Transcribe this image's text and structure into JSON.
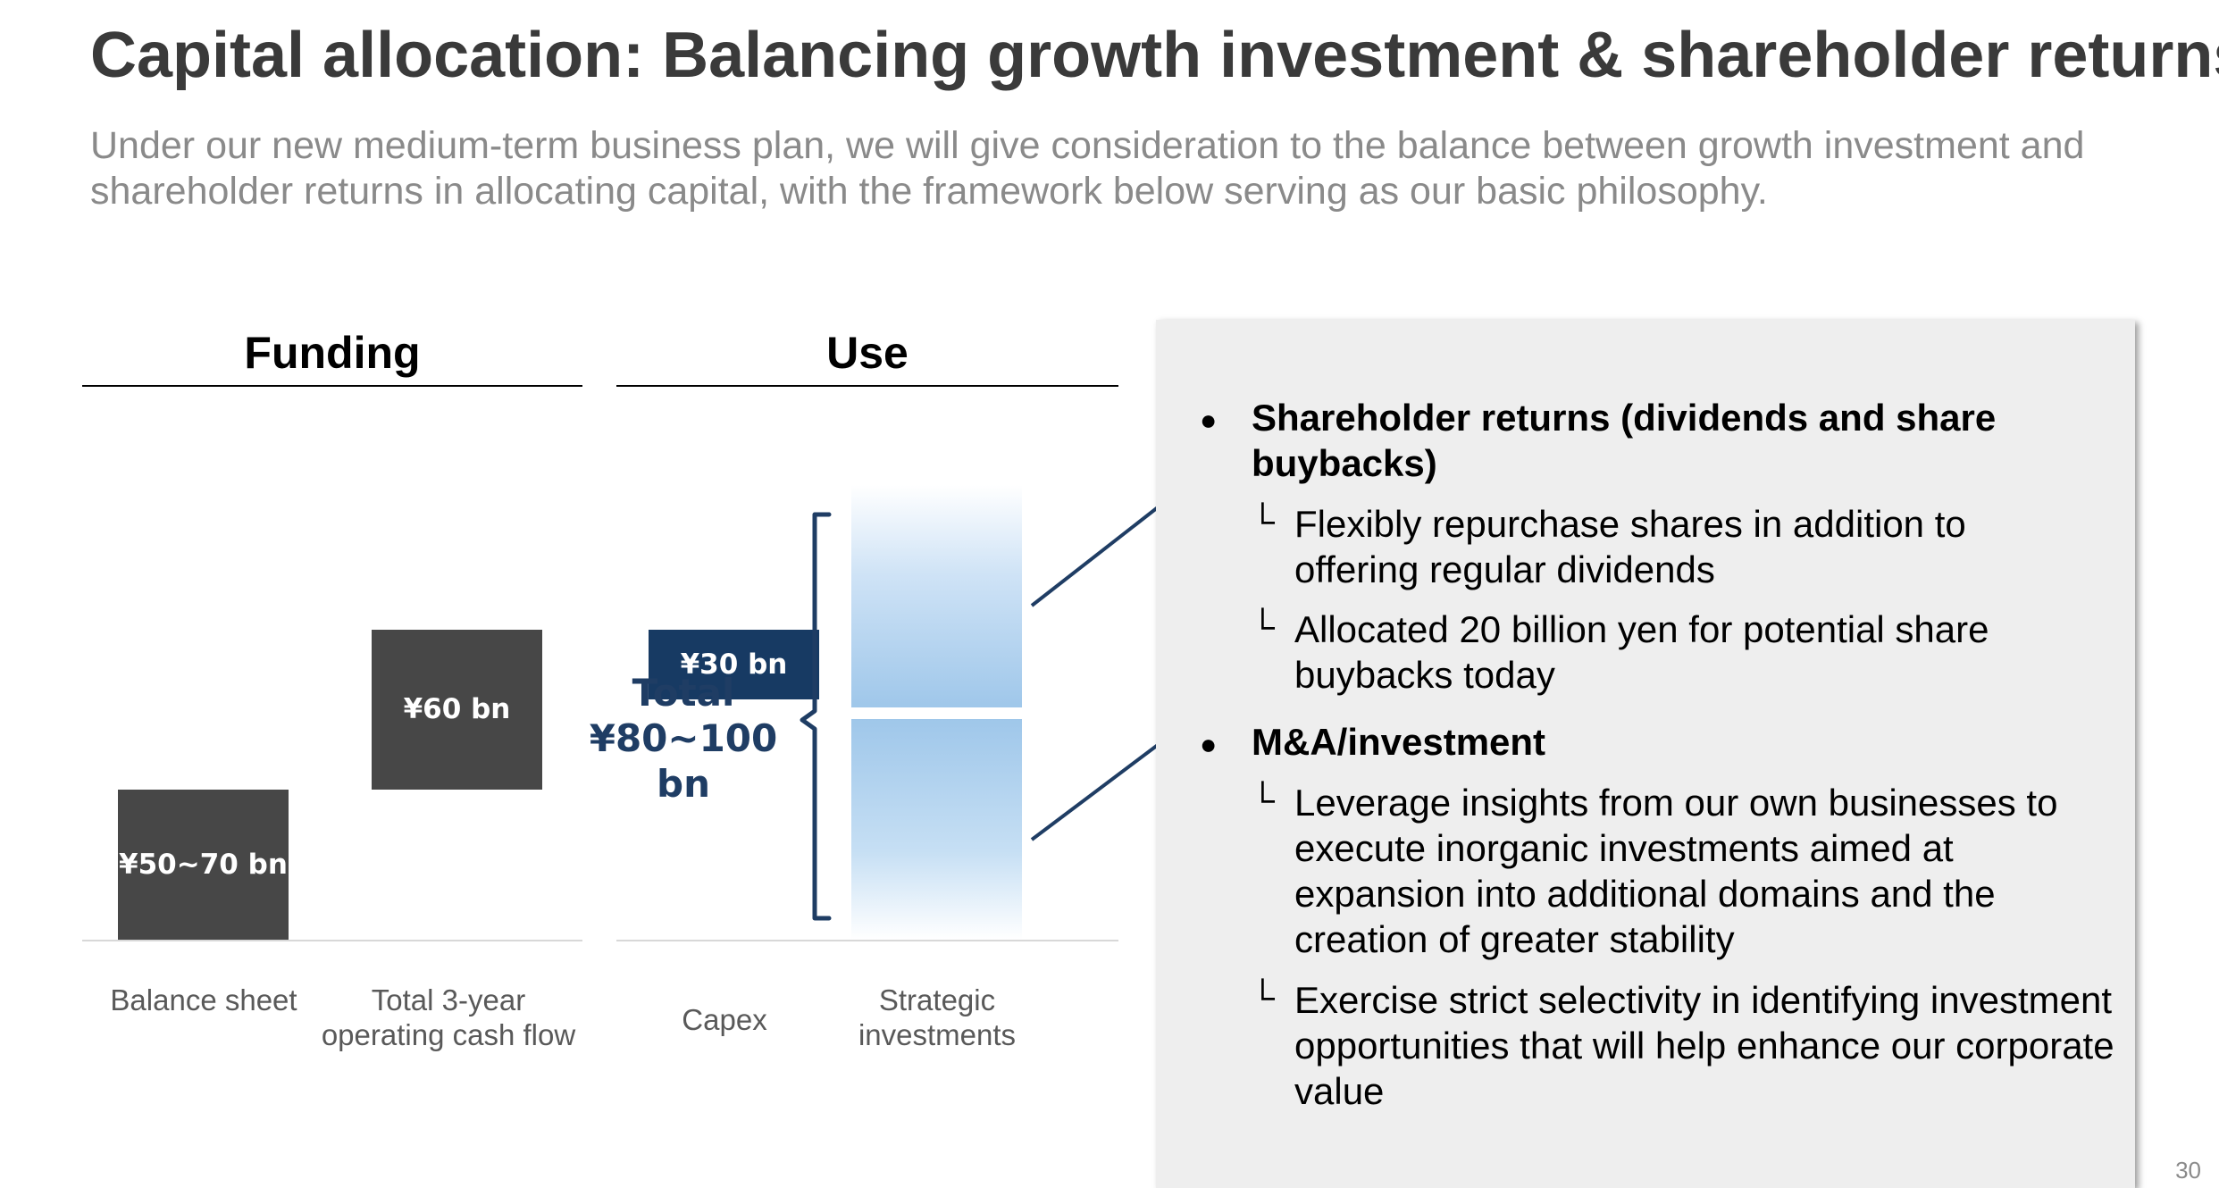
{
  "page": {
    "title": "Capital allocation: Balancing growth investment & shareholder returns",
    "subtitle": "Under our new medium-term business plan, we will give consideration to the balance between growth investment and shareholder returns in allocating capital, with the framework below serving as our basic philosophy.",
    "page_number": "30"
  },
  "colors": {
    "dark_bar": "#474747",
    "navy_bar": "#173a63",
    "light_blue": "#9fc7ea",
    "total_text": "#1f3d64",
    "card_bg": "#eeeeee"
  },
  "chart_data": {
    "type": "bar",
    "subtype": "waterfall",
    "unit": "¥ bn",
    "panels": [
      {
        "heading": "Funding",
        "bars": [
          {
            "category": "Balance sheet",
            "label": "¥50~70 bn",
            "range": [
              50,
              70
            ],
            "base": 0
          },
          {
            "category": "Total 3-year operating cash flow",
            "label": "¥60 bn",
            "value": 60,
            "base": 70
          }
        ]
      },
      {
        "heading": "Use",
        "bars": [
          {
            "category": "Capex",
            "label": "¥30 bn",
            "value": 30
          },
          {
            "category": "Strategic investments",
            "segments": 2,
            "style": "gradient"
          }
        ],
        "total_label_line1": "Total",
        "total_label_line2": "¥80~100 bn",
        "total_range": [
          80,
          100
        ]
      }
    ],
    "grid": false,
    "legend": "none"
  },
  "details": {
    "items": [
      {
        "icon": "bullet-icon",
        "heading": "Shareholder returns (dividends and share buybacks)",
        "subitems": [
          {
            "icon": "corner-mark-icon",
            "text": "Flexibly repurchase shares in addition to offering regular dividends"
          },
          {
            "icon": "corner-mark-icon",
            "text": "Allocated 20 billion yen for potential share buybacks today"
          }
        ]
      },
      {
        "icon": "bullet-icon",
        "heading": "M&A/investment",
        "subitems": [
          {
            "icon": "corner-mark-icon",
            "text": "Leverage insights from our own businesses to execute inorganic investments aimed at expansion into additional domains and the creation of greater stability"
          },
          {
            "icon": "corner-mark-icon",
            "text": "Exercise strict selectivity in identifying investment opportunities that will help enhance our corporate value"
          }
        ]
      }
    ]
  }
}
